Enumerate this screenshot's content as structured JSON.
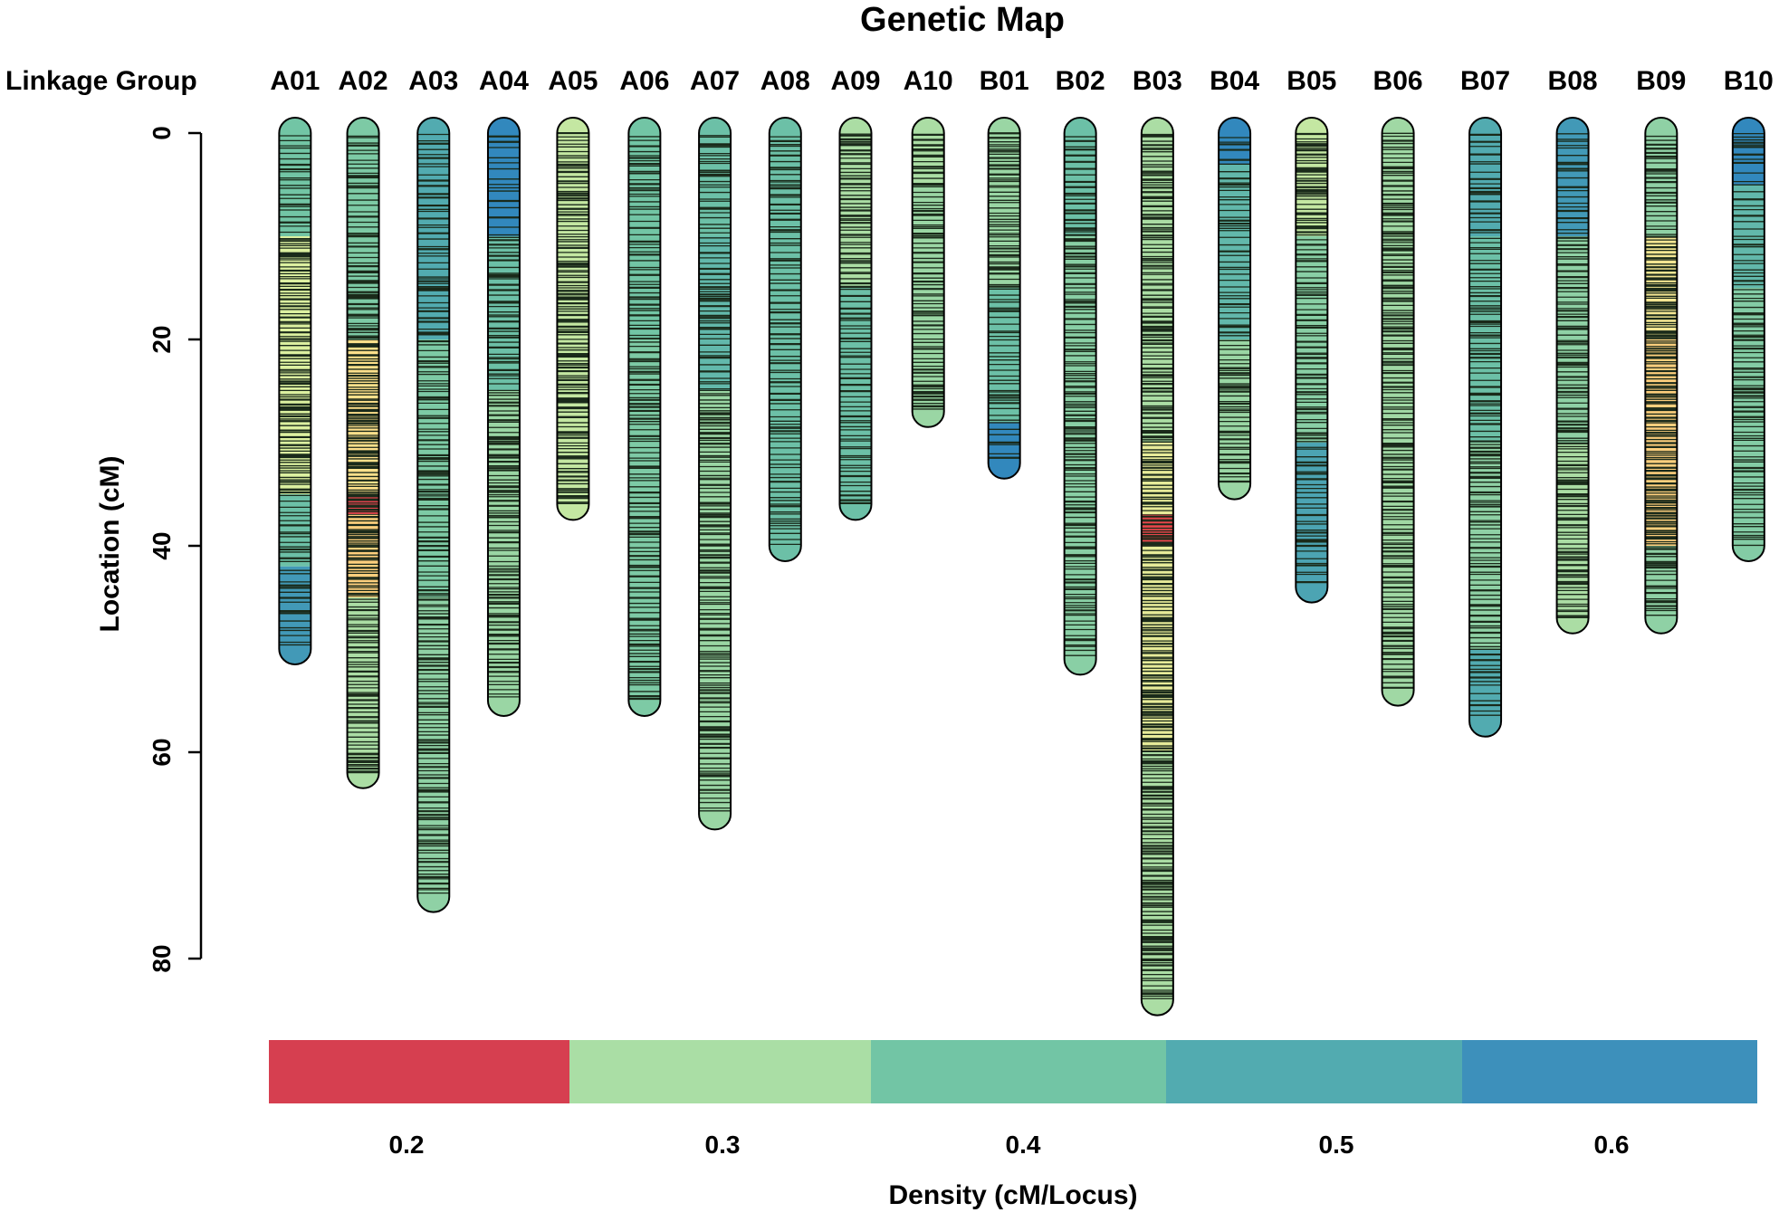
{
  "chart_data": {
    "type": "genetic-map",
    "title": "Genetic Map",
    "group_header": "Linkage Group",
    "ylabel": "Location (cM)",
    "ylim": [
      0,
      80
    ],
    "yticks": [
      "0",
      "20",
      "40",
      "60",
      "80"
    ],
    "legend": {
      "title": "Density (cM/Locus)",
      "labels": [
        "0.2",
        "0.3",
        "0.4",
        "0.5",
        "0.6"
      ],
      "colors": [
        "#d63f50",
        "#aadea5",
        "#72c5a5",
        "#52abb0",
        "#3d90bb"
      ]
    },
    "groups": [
      {
        "name": "A01",
        "length": 50,
        "density": [
          [
            0,
            10,
            0.4
          ],
          [
            10,
            35,
            0.28
          ],
          [
            35,
            42,
            0.42
          ],
          [
            42,
            50,
            0.55
          ]
        ]
      },
      {
        "name": "A02",
        "length": 62,
        "density": [
          [
            0,
            20,
            0.38
          ],
          [
            20,
            35,
            0.25
          ],
          [
            35,
            37,
            0.18
          ],
          [
            37,
            45,
            0.24
          ],
          [
            45,
            62,
            0.3
          ]
        ]
      },
      {
        "name": "A03",
        "length": 74,
        "density": [
          [
            0,
            20,
            0.5
          ],
          [
            20,
            45,
            0.38
          ],
          [
            45,
            74,
            0.35
          ]
        ]
      },
      {
        "name": "A04",
        "length": 55,
        "density": [
          [
            0,
            10,
            0.6
          ],
          [
            10,
            25,
            0.42
          ],
          [
            25,
            55,
            0.33
          ]
        ]
      },
      {
        "name": "A05",
        "length": 36,
        "density": [
          [
            0,
            36,
            0.29
          ]
        ]
      },
      {
        "name": "A06",
        "length": 55,
        "density": [
          [
            0,
            20,
            0.4
          ],
          [
            20,
            55,
            0.38
          ]
        ]
      },
      {
        "name": "A07",
        "length": 66,
        "density": [
          [
            0,
            10,
            0.42
          ],
          [
            10,
            25,
            0.45
          ],
          [
            25,
            66,
            0.33
          ]
        ]
      },
      {
        "name": "A08",
        "length": 40,
        "density": [
          [
            0,
            40,
            0.42
          ]
        ]
      },
      {
        "name": "A09",
        "length": 36,
        "density": [
          [
            0,
            15,
            0.3
          ],
          [
            15,
            36,
            0.42
          ]
        ]
      },
      {
        "name": "A10",
        "length": 27,
        "density": [
          [
            0,
            5,
            0.3
          ],
          [
            5,
            27,
            0.33
          ]
        ]
      },
      {
        "name": "B01",
        "length": 32,
        "density": [
          [
            0,
            15,
            0.33
          ],
          [
            15,
            28,
            0.42
          ],
          [
            28,
            32,
            0.6
          ]
        ]
      },
      {
        "name": "B02",
        "length": 51,
        "density": [
          [
            0,
            10,
            0.42
          ],
          [
            10,
            51,
            0.36
          ]
        ]
      },
      {
        "name": "B03",
        "length": 84,
        "density": [
          [
            0,
            30,
            0.3
          ],
          [
            30,
            37,
            0.27
          ],
          [
            37,
            40,
            0.2
          ],
          [
            40,
            60,
            0.27
          ],
          [
            60,
            84,
            0.3
          ]
        ]
      },
      {
        "name": "B04",
        "length": 34,
        "density": [
          [
            0,
            3,
            0.6
          ],
          [
            3,
            20,
            0.45
          ],
          [
            20,
            34,
            0.33
          ]
        ]
      },
      {
        "name": "B05",
        "length": 44,
        "density": [
          [
            0,
            10,
            0.29
          ],
          [
            10,
            30,
            0.36
          ],
          [
            30,
            44,
            0.52
          ]
        ]
      },
      {
        "name": "B06",
        "length": 54,
        "density": [
          [
            0,
            54,
            0.32
          ]
        ]
      },
      {
        "name": "B07",
        "length": 57,
        "density": [
          [
            0,
            10,
            0.5
          ],
          [
            10,
            30,
            0.42
          ],
          [
            30,
            50,
            0.35
          ],
          [
            50,
            57,
            0.5
          ]
        ]
      },
      {
        "name": "B08",
        "length": 47,
        "density": [
          [
            0,
            10,
            0.55
          ],
          [
            10,
            30,
            0.35
          ],
          [
            30,
            47,
            0.3
          ]
        ]
      },
      {
        "name": "B09",
        "length": 47,
        "density": [
          [
            0,
            10,
            0.35
          ],
          [
            10,
            20,
            0.26
          ],
          [
            20,
            40,
            0.24
          ],
          [
            40,
            47,
            0.35
          ]
        ]
      },
      {
        "name": "B10",
        "length": 40,
        "density": [
          [
            0,
            5,
            0.6
          ],
          [
            5,
            15,
            0.45
          ],
          [
            15,
            40,
            0.37
          ]
        ]
      }
    ]
  }
}
